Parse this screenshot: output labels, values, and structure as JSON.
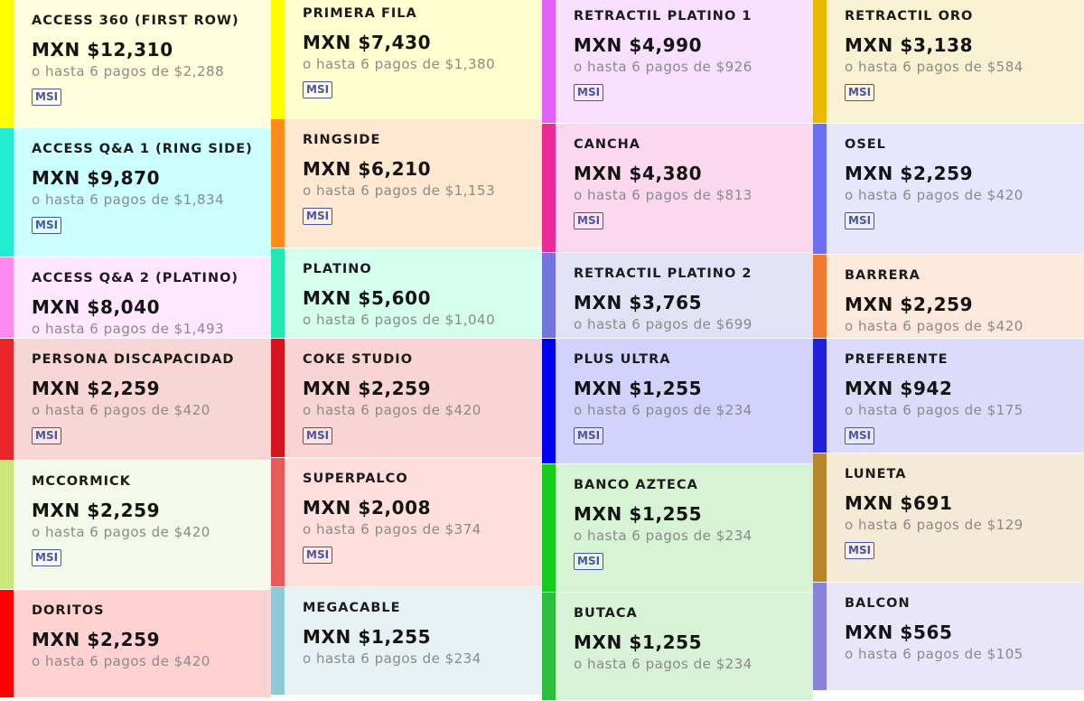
{
  "columns": [
    [
      {
        "name": "ACCESS 360 (FIRST ROW)",
        "price": "MXN $12,310",
        "installments": "o hasta 6 pagos de $2,288",
        "badge": "MSI",
        "bg": "#FFFFDD",
        "accent": "#FFFF00"
      },
      {
        "name": "ACCESS Q&A 1 (RING SIDE)",
        "price": "MXN $9,870",
        "installments": "o hasta 6 pagos de $1,834",
        "badge": "MSI",
        "bg": "#CCFFFF",
        "accent": "#22EDD2"
      },
      {
        "name": "ACCESS Q&A 2 (PLATINO)",
        "price": "MXN $8,040",
        "installments": "o hasta 6 pagos de $1,493",
        "badge": "",
        "bg": "#FFE8FF",
        "accent": "#FF88F2"
      },
      {
        "name": "PERSONA DISCAPACIDAD",
        "price": "MXN $2,259",
        "installments": "o hasta 6 pagos de $420",
        "badge": "MSI",
        "bg": "#F8D6D6",
        "accent": "#E8262A"
      },
      {
        "name": "MCCORMICK",
        "price": "MXN $2,259",
        "installments": "o hasta 6 pagos de $420",
        "badge": "MSI",
        "bg": "#F4F9E9",
        "accent": "#CDE87A"
      },
      {
        "name": "DORITOS",
        "price": "MXN $2,259",
        "installments": "o hasta 6 pagos de $420",
        "badge": "",
        "bg": "#FFD2D2",
        "accent": "#FF0000"
      }
    ],
    [
      {
        "name": "PRIMERA FILA",
        "price": "MXN $7,430",
        "installments": "o hasta 6 pagos de $1,380",
        "badge": "MSI",
        "bg": "#FFFFD0",
        "accent": "#FFFF00"
      },
      {
        "name": "RINGSIDE",
        "price": "MXN $6,210",
        "installments": "o hasta 6 pagos de $1,153",
        "badge": "MSI",
        "bg": "#FFE8D2",
        "accent": "#FF8C1A"
      },
      {
        "name": "PLATINO",
        "price": "MXN $5,600",
        "installments": "o hasta 6 pagos de $1,040",
        "badge": "",
        "bg": "#D4FFEF",
        "accent": "#22E8B0"
      },
      {
        "name": "COKE STUDIO",
        "price": "MXN $2,259",
        "installments": "o hasta 6 pagos de $420",
        "badge": "MSI",
        "bg": "#F8D4D4",
        "accent": "#D4141C"
      },
      {
        "name": "SUPERPALCO",
        "price": "MXN $2,008",
        "installments": "o hasta 6 pagos de $374",
        "badge": "MSI",
        "bg": "#FFDEDE",
        "accent": "#E85A5A"
      },
      {
        "name": "MEGACABLE",
        "price": "MXN $1,255",
        "installments": "o hasta 6 pagos de $234",
        "badge": "",
        "bg": "#E8F2F4",
        "accent": "#8ECAD6"
      }
    ],
    [
      {
        "name": "RETRACTIL PLATINO 1",
        "price": "MXN $4,990",
        "installments": "o hasta 6 pagos de $926",
        "badge": "MSI",
        "bg": "#F8DEFF",
        "accent": "#E060F8"
      },
      {
        "name": "CANCHA",
        "price": "MXN $4,380",
        "installments": "o hasta 6 pagos de $813",
        "badge": "MSI",
        "bg": "#FCD8EE",
        "accent": "#EA2A98"
      },
      {
        "name": "RETRACTIL PLATINO 2",
        "price": "MXN $3,765",
        "installments": "o hasta 6 pagos de $699",
        "badge": "",
        "bg": "#E2E2F6",
        "accent": "#7474E0"
      },
      {
        "name": "PLUS ULTRA",
        "price": "MXN $1,255",
        "installments": "o hasta 6 pagos de $234",
        "badge": "MSI",
        "bg": "#D2D2FC",
        "accent": "#0000EE"
      },
      {
        "name": "BANCO AZTECA",
        "price": "MXN $1,255",
        "installments": "o hasta 6 pagos de $234",
        "badge": "MSI",
        "bg": "#D6F4D4",
        "accent": "#16CC1E"
      },
      {
        "name": "BUTACA",
        "price": "MXN $1,255",
        "installments": "o hasta 6 pagos de $234",
        "badge": "",
        "bg": "#D8F2D8",
        "accent": "#2EBE3E"
      }
    ],
    [
      {
        "name": "RETRACTIL ORO",
        "price": "MXN $3,138",
        "installments": "o hasta 6 pagos de $584",
        "badge": "MSI",
        "bg": "#F8F2D2",
        "accent": "#E8BA00"
      },
      {
        "name": "OSEL",
        "price": "MXN $2,259",
        "installments": "o hasta 6 pagos de $420",
        "badge": "MSI",
        "bg": "#E6E6FF",
        "accent": "#6E6EF2"
      },
      {
        "name": "BARRERA",
        "price": "MXN $2,259",
        "installments": "o hasta 6 pagos de $420",
        "badge": "",
        "bg": "#FDE8DC",
        "accent": "#F27A2E"
      },
      {
        "name": "PREFERENTE",
        "price": "MXN $942",
        "installments": "o hasta 6 pagos de $175",
        "badge": "MSI",
        "bg": "#DCDCFA",
        "accent": "#2020D8"
      },
      {
        "name": "LUNETA",
        "price": "MXN $691",
        "installments": "o hasta 6 pagos de $129",
        "badge": "MSI",
        "bg": "#F4EAD6",
        "accent": "#B8862A"
      },
      {
        "name": "BALCON",
        "price": "MXN $565",
        "installments": "o hasta 6 pagos de $105",
        "badge": "",
        "bg": "#E8E6F8",
        "accent": "#8A82D8"
      }
    ]
  ]
}
